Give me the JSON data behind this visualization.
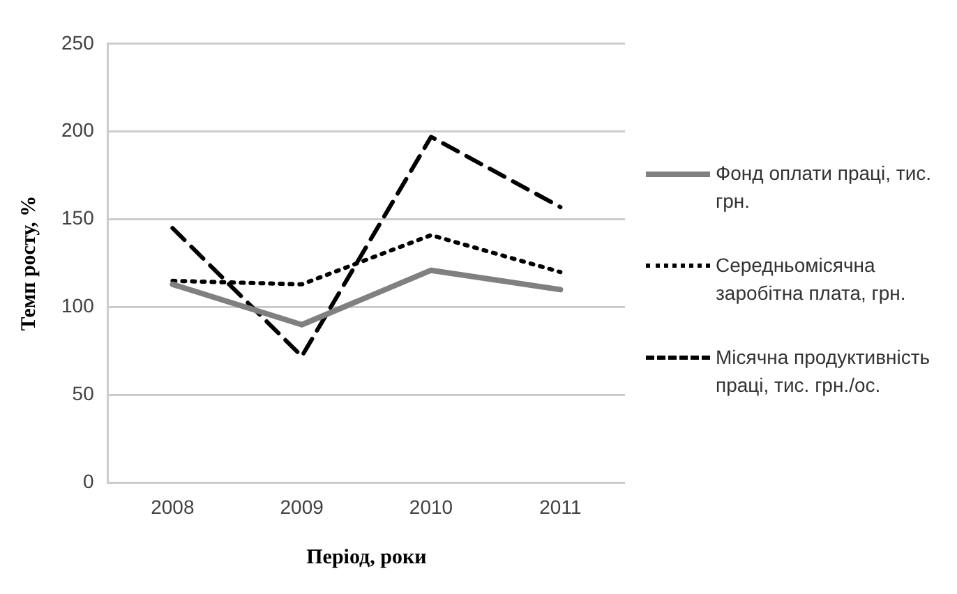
{
  "chart_data": {
    "type": "line",
    "xlabel": "Період, роки",
    "ylabel": "Темп росту, %",
    "categories": [
      "2008",
      "2009",
      "2010",
      "2011"
    ],
    "series": [
      {
        "name": "Фонд оплати праці, тис. грн.",
        "color": "#808080",
        "values": [
          113,
          90,
          121,
          110
        ],
        "line_style": "solid"
      },
      {
        "name": "Середньомісячна заробітна плата, грн.",
        "color": "#000000",
        "values": [
          115,
          113,
          141,
          120
        ],
        "line_style": "dotted"
      },
      {
        "name": "Місячна продуктивність праці, тис. грн./ос.",
        "color": "#000000",
        "values": [
          145,
          72,
          197,
          157
        ],
        "line_style": "dashed"
      }
    ],
    "ylim": [
      0,
      250
    ],
    "yticks": [
      0,
      50,
      100,
      150,
      200,
      250
    ],
    "grid": "y",
    "legend": "right",
    "marker": "none"
  }
}
